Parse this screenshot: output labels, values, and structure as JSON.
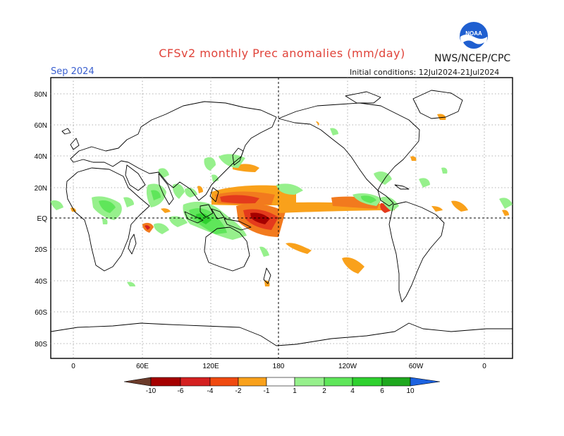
{
  "header": {
    "title": "CFSv2 monthly Prec anomalies (mm/day)",
    "month": "Sep 2024",
    "agency": "NWS/NCEP/CPC",
    "initial_conditions": "Initial conditions: 12Jul2024-21Jul2024",
    "logo_text": "NOAA"
  },
  "map": {
    "lat_labels": [
      "80N",
      "60N",
      "40N",
      "20N",
      "EQ",
      "20S",
      "40S",
      "60S",
      "80S"
    ],
    "lon_labels": [
      "0",
      "60E",
      "120E",
      "180",
      "120W",
      "60W",
      "0"
    ]
  },
  "colorbar": {
    "tick_labels": [
      "-10",
      "-6",
      "-4",
      "-2",
      "-1",
      "1",
      "2",
      "4",
      "6",
      "10"
    ],
    "colors": {
      "dry": [
        "#6b3b2a",
        "#a50000",
        "#d42020",
        "#f04a10",
        "#f27a1e",
        "#f9a11b"
      ],
      "wet": [
        "#96f08c",
        "#5fe65a",
        "#2fd12f",
        "#1ea81e",
        "#0f8c0f",
        "#1c62e0"
      ]
    }
  }
}
